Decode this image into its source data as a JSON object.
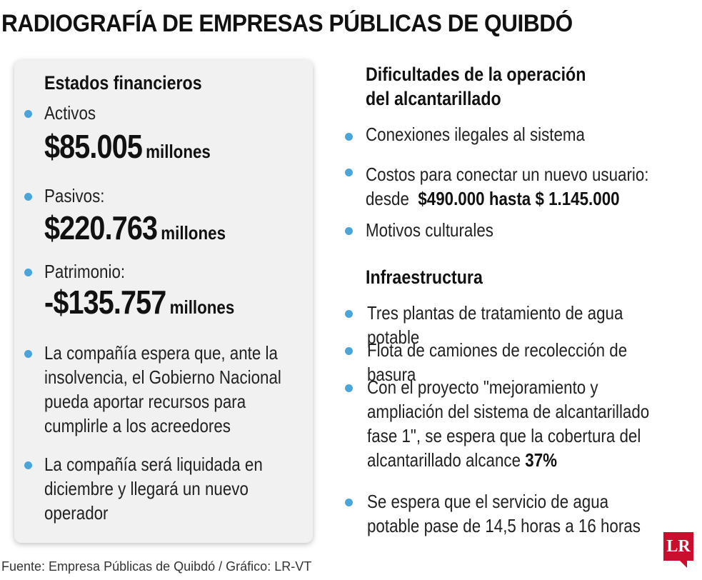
{
  "title": "RADIOGRAFÍA DE EMPRESAS PÚBLICAS DE QUIBDÓ",
  "left": {
    "heading": "Estados financieros",
    "activos": {
      "label": "Activos",
      "value": "$85.005",
      "unit": "millones"
    },
    "pasivos": {
      "label": "Pasivos:",
      "value": "$220.763",
      "unit": "millones"
    },
    "patrimonio": {
      "label": "Patrimonio:",
      "value": "-$135.757",
      "unit": "millones"
    },
    "note1": [
      "La compañía espera que, ante la",
      "insolvencia, el Gobierno Nacional",
      "pueda aportar recursos para",
      "cumplirle a los acreedores"
    ],
    "note2": [
      "La compañía será liquidada en",
      "diciembre y llegará un nuevo",
      "operador"
    ]
  },
  "right": {
    "heading1": [
      "Dificultades de la operación",
      "del alcantarillado"
    ],
    "item1": "Conexiones ilegales al sistema",
    "item2_line1": "Costos para conectar un nuevo usuario:",
    "item2_prefix": "desde",
    "item2_bold": "$490.000 hasta $ 1.145.000",
    "item3": "Motivos culturales",
    "heading2": "Infraestructura",
    "infra1": "Tres plantas de tratamiento de agua potable",
    "infra2": "Flota de camiones de recolección de basura",
    "infra3_lines": [
      "Con el proyecto \"mejoramiento y",
      "ampliación del sistema de alcantarillado",
      "fase 1\", se espera que la cobertura del"
    ],
    "infra3_last_prefix": "alcantarillado alcance",
    "infra3_bold": "37%",
    "infra4": [
      "Se espera que el servicio de agua",
      "potable pase de 14,5 horas a 16 horas"
    ]
  },
  "footer": "Fuente: Empresa Públicas de Quibdó / Gráfico: LR-VT",
  "logo": "LR",
  "colors": {
    "bullet": "#4aa5d9",
    "logo": "#c8102e",
    "card": "#f1f1f1"
  }
}
